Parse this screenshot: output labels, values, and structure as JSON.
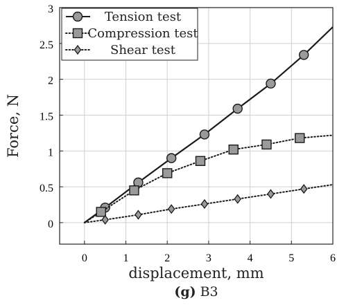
{
  "chart_data": {
    "type": "line",
    "title": "",
    "xlabel": "displacement, mm",
    "ylabel": "Force, N",
    "xlim": [
      -0.6,
      6
    ],
    "ylim": [
      -0.3,
      3
    ],
    "xticks": [
      0,
      1,
      2,
      3,
      4,
      5,
      6
    ],
    "yticks": [
      0,
      0.5,
      1,
      1.5,
      2,
      2.5,
      3
    ],
    "xtick_labels": [
      "0",
      "1",
      "2",
      "3",
      "4",
      "5",
      "6"
    ],
    "ytick_labels": [
      "0",
      "0.5",
      "1",
      "1.5",
      "2",
      "2.5",
      "3"
    ],
    "grid": true,
    "legend_position": "top-left",
    "series": [
      {
        "name": "Tension test",
        "line_style": "solid",
        "marker": "circle",
        "curve_x": [
          0,
          0.5,
          1.3,
          2.1,
          2.9,
          3.7,
          4.5,
          5.3,
          6.0
        ],
        "curve_y": [
          0,
          0.21,
          0.56,
          0.9,
          1.23,
          1.59,
          1.94,
          2.34,
          2.73
        ],
        "marker_x": [
          0.5,
          1.3,
          2.1,
          2.9,
          3.7,
          4.5,
          5.3
        ],
        "marker_y": [
          0.21,
          0.56,
          0.9,
          1.23,
          1.59,
          1.94,
          2.34
        ]
      },
      {
        "name": "Compression test",
        "line_style": "dotted",
        "marker": "square",
        "curve_x": [
          0,
          0.4,
          1.2,
          2.0,
          2.8,
          3.6,
          4.4,
          5.2,
          6.0
        ],
        "curve_y": [
          0,
          0.15,
          0.45,
          0.69,
          0.86,
          1.02,
          1.09,
          1.18,
          1.22
        ],
        "marker_x": [
          0.4,
          1.2,
          2.0,
          2.8,
          3.6,
          4.4,
          5.2
        ],
        "marker_y": [
          0.15,
          0.45,
          0.69,
          0.86,
          1.02,
          1.09,
          1.18
        ]
      },
      {
        "name": "Shear test",
        "line_style": "dotted",
        "marker": "diamond",
        "curve_x": [
          0,
          0.5,
          1.3,
          2.1,
          2.9,
          3.7,
          4.5,
          5.3,
          6.0
        ],
        "curve_y": [
          0,
          0.04,
          0.11,
          0.19,
          0.26,
          0.33,
          0.4,
          0.47,
          0.53
        ],
        "marker_x": [
          0.5,
          1.3,
          2.1,
          2.9,
          3.7,
          4.5,
          5.3
        ],
        "marker_y": [
          0.04,
          0.11,
          0.19,
          0.26,
          0.33,
          0.4,
          0.47
        ]
      }
    ]
  },
  "caption": {
    "label": "(g)",
    "text": "B3"
  },
  "colors": {
    "line": "#1a1a1a",
    "marker_fill": "#9a9a9a",
    "grid": "#cfcfcf",
    "axis": "#222222"
  }
}
